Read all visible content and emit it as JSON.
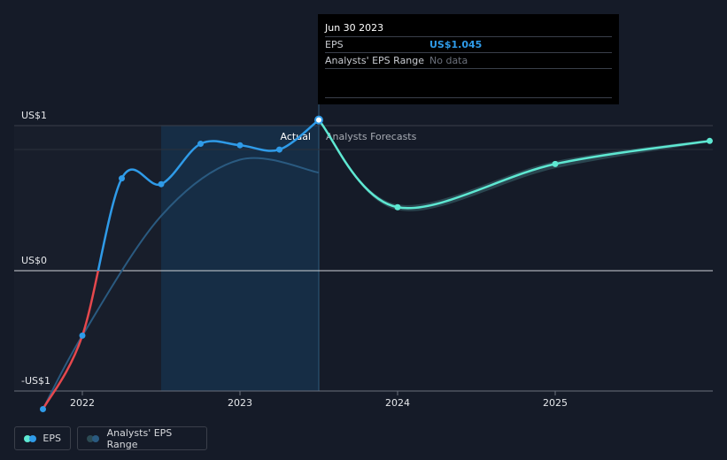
{
  "chart_data": {
    "type": "line",
    "y_tick_labels": [
      "US$1",
      "US$0",
      "-US$1"
    ],
    "x_tick_labels": [
      "2022",
      "2023",
      "2024",
      "2025"
    ],
    "divider_labels": {
      "actual": "Actual",
      "forecast": "Analysts Forecasts"
    },
    "series": [
      {
        "name": "EPS",
        "kind": "actual",
        "points": [
          {
            "x": 2021.75,
            "y": -0.96
          },
          {
            "x": 2022.0,
            "y": -0.45
          },
          {
            "x": 2022.25,
            "y": 0.64
          },
          {
            "x": 2022.5,
            "y": 0.6
          },
          {
            "x": 2022.75,
            "y": 0.88
          },
          {
            "x": 2023.0,
            "y": 0.87
          },
          {
            "x": 2023.25,
            "y": 0.84
          },
          {
            "x": 2023.5,
            "y": 1.045
          }
        ]
      },
      {
        "name": "EPS",
        "kind": "forecast",
        "points": [
          {
            "x": 2023.5,
            "y": 1.045
          },
          {
            "x": 2024.0,
            "y": 0.44
          },
          {
            "x": 2025.0,
            "y": 0.74
          },
          {
            "x": 2025.98,
            "y": 0.9
          }
        ]
      },
      {
        "name": "Analysts' EPS Range",
        "kind": "smoothed-actual",
        "points": [
          {
            "x": 2021.75,
            "y": -0.96
          },
          {
            "x": 2022.0,
            "y": -0.45
          },
          {
            "x": 2022.5,
            "y": 0.38
          },
          {
            "x": 2023.0,
            "y": 0.77
          },
          {
            "x": 2023.5,
            "y": 0.68
          }
        ]
      }
    ],
    "forecast_range": {
      "upper": [
        {
          "x": 2023.5,
          "y": 1.045
        },
        {
          "x": 2024.0,
          "y": 0.46
        },
        {
          "x": 2025.0,
          "y": 0.76
        },
        {
          "x": 2025.98,
          "y": 0.91
        }
      ],
      "lower": [
        {
          "x": 2023.5,
          "y": 1.045
        },
        {
          "x": 2024.0,
          "y": 0.42
        },
        {
          "x": 2025.0,
          "y": 0.71
        },
        {
          "x": 2025.98,
          "y": 0.89
        }
      ]
    },
    "highlight_range": [
      2022.5,
      2023.5
    ],
    "past_shaded_until": 2022.5
  },
  "tooltip": {
    "date": "Jun 30 2023",
    "eps_label": "EPS",
    "eps_value": "US$1.045",
    "range_label": "Analysts' EPS Range",
    "range_value": "No data"
  },
  "legend": {
    "eps_label": "EPS",
    "range_label": "Analysts' EPS Range"
  },
  "colors": {
    "background": "#151b28",
    "eps_actual": "#2f9be8",
    "eps_negative": "#e5484d",
    "eps_forecast": "#5ee8d2",
    "range_fill": "#2c4a53",
    "smoothed_line": "#2a5a80",
    "highlight": "#16304a"
  }
}
